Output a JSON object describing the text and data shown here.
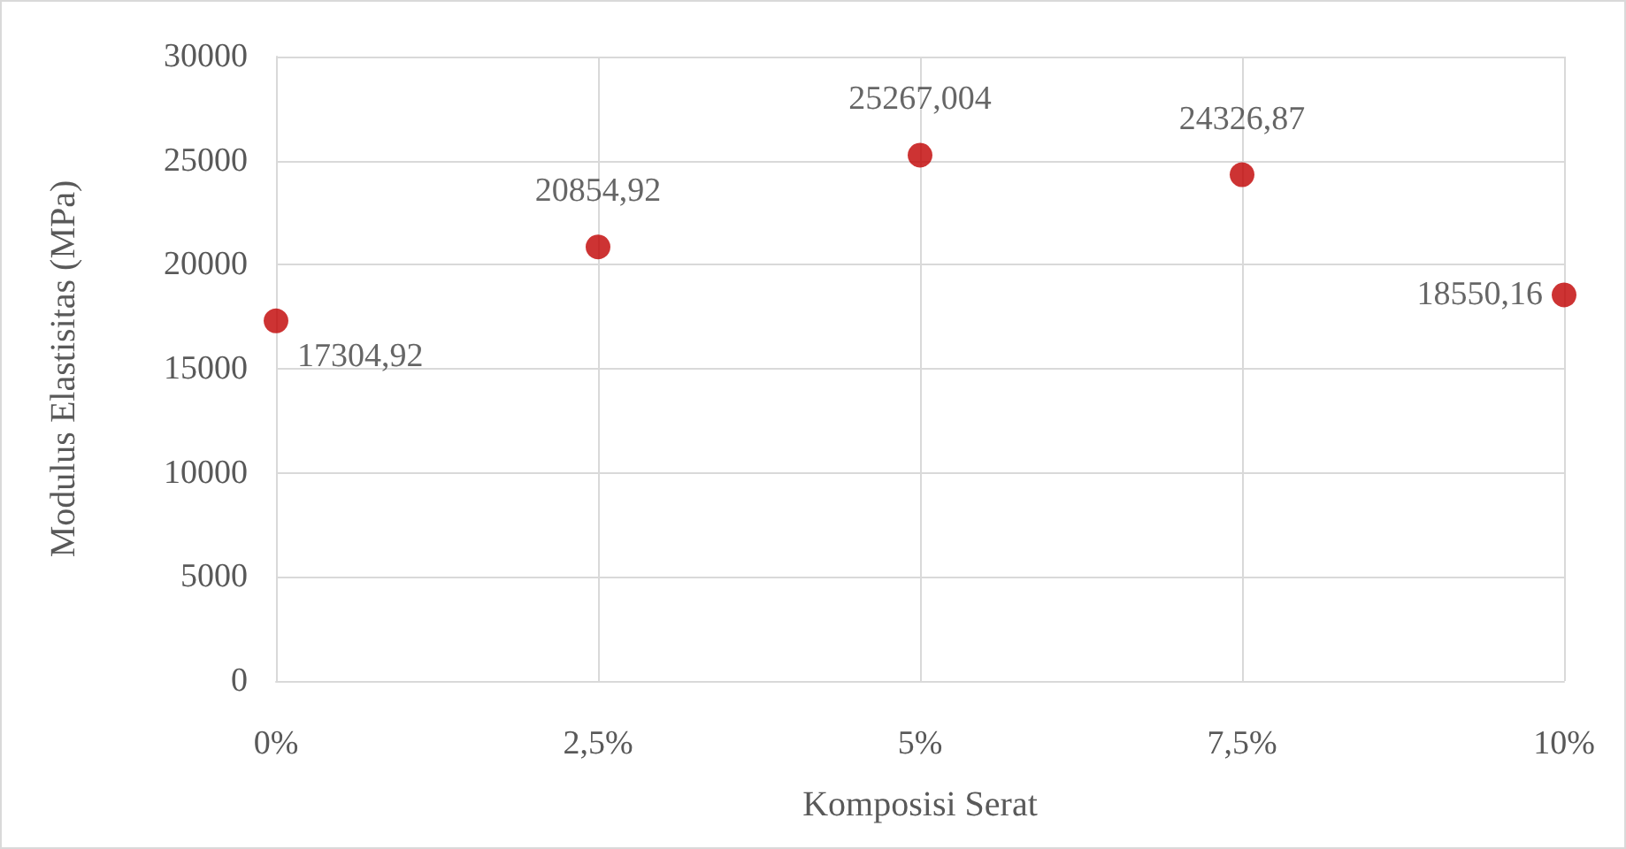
{
  "chart_data": {
    "type": "scatter",
    "xlabel": "Komposisi Serat",
    "ylabel": "Modulus Elastisitas (MPa)",
    "x": [
      0,
      2.5,
      5,
      7.5,
      10
    ],
    "series": [
      {
        "color": "#c00000",
        "values": [
          17304.92,
          20854.92,
          25267.004,
          24326.87,
          18550.16
        ],
        "value_labels": [
          "17304,92",
          "20854,92",
          "25267,004",
          "24326,87",
          "18550,16"
        ]
      }
    ],
    "xlim": [
      0,
      10
    ],
    "xticks": [
      {
        "value": 0,
        "label": "0%"
      },
      {
        "value": 2.5,
        "label": "2,5%"
      },
      {
        "value": 5,
        "label": "5%"
      },
      {
        "value": 7.5,
        "label": "7,5%"
      },
      {
        "value": 10,
        "label": "10%"
      }
    ],
    "ylim": [
      0,
      30000
    ],
    "yticks": [
      0,
      5000,
      10000,
      15000,
      20000,
      25000,
      30000
    ],
    "grid": true,
    "marker": "circle"
  }
}
